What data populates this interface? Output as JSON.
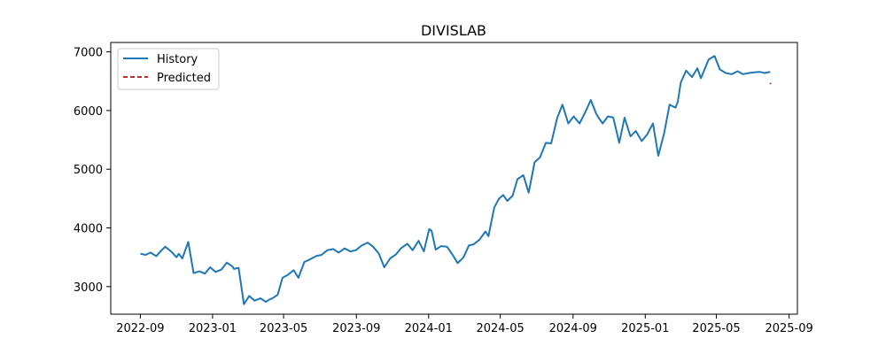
{
  "chart_data": {
    "type": "line",
    "title": "DIVISLAB",
    "xlabel": "",
    "ylabel": "",
    "xlim": [
      "2022-07-13",
      "2025-09-15"
    ],
    "ylim": [
      2530,
      7160
    ],
    "x_ticks": [
      "2022-09",
      "2023-01",
      "2023-05",
      "2023-09",
      "2024-01",
      "2024-05",
      "2024-09",
      "2025-01",
      "2025-05",
      "2025-09"
    ],
    "y_ticks": [
      3000,
      4000,
      5000,
      6000,
      7000
    ],
    "grid": false,
    "legend": {
      "position": "upper-left",
      "entries": [
        "History",
        "Predicted"
      ]
    },
    "series": [
      {
        "name": "History",
        "color": "#1f77b4",
        "style": "solid",
        "x": [
          "2022-09-01",
          "2022-09-10",
          "2022-09-18",
          "2022-09-28",
          "2022-10-07",
          "2022-10-13",
          "2022-10-23",
          "2022-11-01",
          "2022-11-05",
          "2022-11-11",
          "2022-11-21",
          "2022-11-30",
          "2022-12-10",
          "2022-12-19",
          "2022-12-28",
          "2023-01-06",
          "2023-01-16",
          "2023-01-25",
          "2023-02-04",
          "2023-02-06",
          "2023-02-14",
          "2023-02-23",
          "2023-03-04",
          "2023-03-13",
          "2023-03-23",
          "2023-04-01",
          "2023-04-07",
          "2023-04-12",
          "2023-04-21",
          "2023-04-29",
          "2023-05-08",
          "2023-05-18",
          "2023-05-26",
          "2023-06-05",
          "2023-06-14",
          "2023-06-25",
          "2023-07-04",
          "2023-07-14",
          "2023-07-24",
          "2023-08-02",
          "2023-08-12",
          "2023-08-22",
          "2023-08-31",
          "2023-09-10",
          "2023-09-20",
          "2023-09-29",
          "2023-10-09",
          "2023-10-18",
          "2023-10-28",
          "2023-11-07",
          "2023-11-15",
          "2023-11-26",
          "2023-12-05",
          "2023-12-15",
          "2023-12-24",
          "2024-01-02",
          "2024-01-06",
          "2024-01-13",
          "2024-01-22",
          "2024-02-01",
          "2024-02-10",
          "2024-02-19",
          "2024-02-29",
          "2024-03-09",
          "2024-03-17",
          "2024-03-27",
          "2024-04-06",
          "2024-04-11",
          "2024-04-21",
          "2024-04-29",
          "2024-05-06",
          "2024-05-13",
          "2024-05-22",
          "2024-05-30",
          "2024-06-09",
          "2024-06-18",
          "2024-06-28",
          "2024-07-07",
          "2024-07-17",
          "2024-07-26",
          "2024-08-05",
          "2024-08-14",
          "2024-08-24",
          "2024-09-02",
          "2024-09-12",
          "2024-09-21",
          "2024-10-01",
          "2024-10-10",
          "2024-10-14",
          "2024-10-21",
          "2024-10-30",
          "2024-11-08",
          "2024-11-18",
          "2024-11-27",
          "2024-12-07",
          "2024-12-16",
          "2024-12-26",
          "2025-01-04",
          "2025-01-14",
          "2025-01-23",
          "2025-02-02",
          "2025-02-11",
          "2025-02-21",
          "2025-02-25",
          "2025-03-02",
          "2025-03-11",
          "2025-03-21",
          "2025-03-30",
          "2025-04-05",
          "2025-04-09",
          "2025-04-18",
          "2025-04-28",
          "2025-05-07",
          "2025-05-17",
          "2025-05-27",
          "2025-06-06",
          "2025-06-15",
          "2025-06-25",
          "2025-07-04",
          "2025-07-13",
          "2025-07-22",
          "2025-07-31"
        ],
        "y": [
          3560,
          3540,
          3580,
          3520,
          3620,
          3680,
          3600,
          3500,
          3560,
          3480,
          3760,
          3230,
          3260,
          3220,
          3330,
          3250,
          3290,
          3410,
          3340,
          3300,
          3320,
          2700,
          2840,
          2760,
          2800,
          2740,
          2780,
          2800,
          2860,
          3150,
          3200,
          3280,
          3150,
          3420,
          3460,
          3520,
          3540,
          3620,
          3640,
          3580,
          3650,
          3600,
          3620,
          3700,
          3750,
          3680,
          3560,
          3330,
          3480,
          3550,
          3650,
          3730,
          3620,
          3780,
          3600,
          3980,
          3950,
          3630,
          3690,
          3680,
          3550,
          3400,
          3500,
          3700,
          3720,
          3800,
          3940,
          3860,
          4350,
          4500,
          4560,
          4460,
          4550,
          4830,
          4900,
          4600,
          5120,
          5200,
          5450,
          5440,
          5870,
          6100,
          5780,
          5900,
          5780,
          5960,
          6180,
          5950,
          5880,
          5780,
          5900,
          5880,
          5450,
          5880,
          5560,
          5650,
          5480,
          5590,
          5780,
          5230,
          5620,
          6100,
          6050,
          6150,
          6480,
          6680,
          6570,
          6720,
          6550,
          6650,
          6870,
          6930,
          6700,
          6640,
          6620,
          6670,
          6620,
          6640,
          6650,
          6660,
          6640,
          6660
        ]
      },
      {
        "name": "Predicted",
        "color": "#d62728",
        "style": "dashed",
        "x": [
          "2025-07-31",
          "2025-08-01"
        ],
        "y": [
          6470,
          6450
        ]
      }
    ]
  }
}
